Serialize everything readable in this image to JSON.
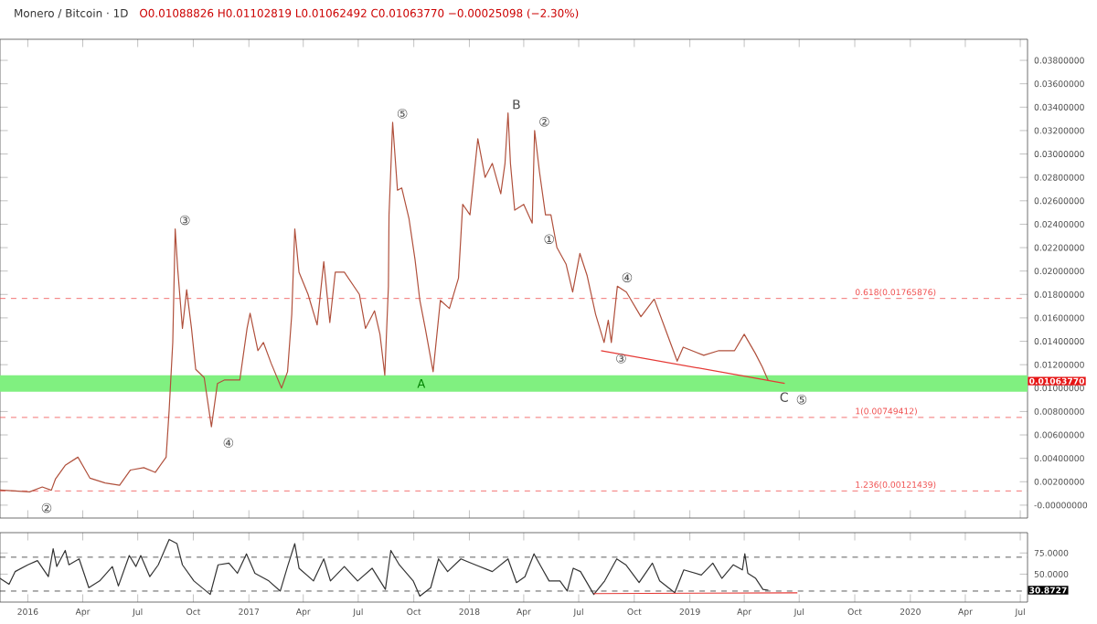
{
  "chart_data": [
    {
      "type": "line",
      "title": "Monero / Bitcoin · 1D",
      "subtitle": "O0.01088826 H0.01102819 L0.01062492 C0.01063770 −0.00025098 (−2.30%)",
      "xlim": [
        "2015-11-16",
        "2020-07-13"
      ],
      "ylim": [
        -0.0011,
        0.0398
      ],
      "xticks": [
        {
          "value": "2016-01-01",
          "label": null
        },
        {
          "value": "2016-04-01",
          "label": null
        },
        {
          "value": "2016-07-01",
          "label": null
        },
        {
          "value": "2016-10-01",
          "label": null
        },
        {
          "value": "2017-01-01",
          "label": null
        },
        {
          "value": "2017-04-01",
          "label": null
        },
        {
          "value": "2017-07-01",
          "label": null
        },
        {
          "value": "2017-10-01",
          "label": null
        },
        {
          "value": "2018-01-01",
          "label": null
        },
        {
          "value": "2018-04-01",
          "label": null
        },
        {
          "value": "2018-07-01",
          "label": null
        },
        {
          "value": "2018-10-01",
          "label": null
        },
        {
          "value": "2019-01-01",
          "label": null
        },
        {
          "value": "2019-04-01",
          "label": null
        },
        {
          "value": "2019-07-01",
          "label": null
        },
        {
          "value": "2019-10-01",
          "label": null
        },
        {
          "value": "2020-01-01",
          "label": null
        },
        {
          "value": "2020-04-01",
          "label": null
        },
        {
          "value": "2020-07-01",
          "label": null
        }
      ],
      "yticks": [
        {
          "value": 0,
          "label": "-0.00000000"
        },
        {
          "value": 0.002,
          "label": "0.00200000"
        },
        {
          "value": 0.004,
          "label": "0.00400000"
        },
        {
          "value": 0.006,
          "label": "0.00600000"
        },
        {
          "value": 0.008,
          "label": "0.00800000"
        },
        {
          "value": 0.01,
          "label": "0.01000000"
        },
        {
          "value": 0.012,
          "label": "0.01200000"
        },
        {
          "value": 0.014,
          "label": "0.01400000"
        },
        {
          "value": 0.016,
          "label": "0.01600000"
        },
        {
          "value": 0.018,
          "label": "0.01800000"
        },
        {
          "value": 0.02,
          "label": "0.02000000"
        },
        {
          "value": 0.022,
          "label": "0.02200000"
        },
        {
          "value": 0.024,
          "label": "0.02400000"
        },
        {
          "value": 0.026,
          "label": "0.02600000"
        },
        {
          "value": 0.028,
          "label": "0.02800000"
        },
        {
          "value": 0.03,
          "label": "0.03000000"
        },
        {
          "value": 0.032,
          "label": "0.03200000"
        },
        {
          "value": 0.034,
          "label": "0.03400000"
        },
        {
          "value": 0.036,
          "label": "0.03600000"
        },
        {
          "value": 0.038,
          "label": "0.03800000"
        }
      ],
      "tick_labels": "y",
      "series": [
        {
          "color": "#b0503c",
          "x": [
            "2015-11-16",
            "2016-01-04",
            "2016-01-25",
            "2016-02-09",
            "2016-02-16",
            "2016-03-03",
            "2016-03-24",
            "2016-04-13",
            "2016-05-08",
            "2016-06-01",
            "2016-06-19",
            "2016-07-11",
            "2016-07-30",
            "2016-08-17",
            "2016-08-22",
            "2016-08-28",
            "2016-09-01",
            "2016-09-05",
            "2016-09-13",
            "2016-09-20",
            "2016-09-28",
            "2016-10-05",
            "2016-10-19",
            "2016-10-31",
            "2016-11-10",
            "2016-11-22",
            "2016-12-17",
            "2016-12-29",
            "2017-01-03",
            "2017-01-16",
            "2017-01-25",
            "2017-02-07",
            "2017-02-24",
            "2017-03-06",
            "2017-03-13",
            "2017-03-18",
            "2017-03-25",
            "2017-04-09",
            "2017-04-24",
            "2017-05-05",
            "2017-05-15",
            "2017-05-24",
            "2017-06-08",
            "2017-07-03",
            "2017-07-13",
            "2017-07-28",
            "2017-08-06",
            "2017-08-14",
            "2017-08-20",
            "2017-08-21",
            "2017-08-27",
            "2017-09-04",
            "2017-09-11",
            "2017-09-23",
            "2017-10-03",
            "2017-10-11",
            "2017-10-20",
            "2017-11-02",
            "2017-11-14",
            "2017-11-29",
            "2017-12-14",
            "2017-12-21",
            "2018-01-02",
            "2018-01-15",
            "2018-01-27",
            "2018-02-08",
            "2018-02-22",
            "2018-03-01",
            "2018-03-06",
            "2018-03-10",
            "2018-03-17",
            "2018-04-01",
            "2018-04-15",
            "2018-04-19",
            "2018-04-27",
            "2018-05-07",
            "2018-05-16",
            "2018-05-26",
            "2018-06-10",
            "2018-06-21",
            "2018-07-03",
            "2018-07-15",
            "2018-07-29",
            "2018-08-12",
            "2018-08-19",
            "2018-08-24",
            "2018-09-03",
            "2018-09-18",
            "2018-10-12",
            "2018-11-03",
            "2018-11-21",
            "2018-12-11",
            "2018-12-21",
            "2019-01-24",
            "2019-02-18",
            "2019-03-16",
            "2019-04-01",
            "2019-04-19",
            "2019-05-01",
            "2019-05-11"
          ],
          "values": [
            0.00129,
            0.00113,
            0.00155,
            0.00127,
            0.00225,
            0.0034,
            0.0041,
            0.0023,
            0.0019,
            0.0017,
            0.003,
            0.0032,
            0.0028,
            0.0041,
            0.0081,
            0.0139,
            0.0236,
            0.0203,
            0.0151,
            0.0184,
            0.0151,
            0.0116,
            0.0109,
            0.0067,
            0.0104,
            0.0107,
            0.0107,
            0.0151,
            0.0164,
            0.0132,
            0.0139,
            0.0121,
            0.01,
            0.0114,
            0.0163,
            0.0236,
            0.0199,
            0.018,
            0.0154,
            0.0208,
            0.0156,
            0.0199,
            0.0199,
            0.018,
            0.0151,
            0.0166,
            0.0146,
            0.0111,
            0.0187,
            0.0248,
            0.0327,
            0.0269,
            0.0271,
            0.0245,
            0.021,
            0.0175,
            0.0151,
            0.0114,
            0.0175,
            0.0168,
            0.0194,
            0.0257,
            0.0248,
            0.0313,
            0.028,
            0.0292,
            0.0266,
            0.0292,
            0.0335,
            0.0292,
            0.0252,
            0.0257,
            0.0241,
            0.032,
            0.0285,
            0.0248,
            0.0248,
            0.022,
            0.0206,
            0.0182,
            0.0215,
            0.0196,
            0.0163,
            0.0139,
            0.0158,
            0.0139,
            0.0187,
            0.0182,
            0.0161,
            0.0176,
            0.0151,
            0.0123,
            0.0135,
            0.0128,
            0.0132,
            0.0132,
            0.0146,
            0.013,
            0.0118,
            0.0106
          ]
        },
        {
          "color": "#e53935",
          "x": [
            "2018-08-07",
            "2019-06-07"
          ],
          "values": [
            0.0132,
            0.0104
          ]
        }
      ],
      "ref_lines": [
        {
          "axis": "y",
          "value": 0.01765876,
          "label": "0.618(0.01765876)",
          "color": "#f05050",
          "line_style": "dashed"
        },
        {
          "axis": "y",
          "value": 0.00749412,
          "label": "1(0.00749412)",
          "color": "#f05050",
          "line_style": "dashed"
        },
        {
          "axis": "y",
          "value": 0.00121439,
          "label": "1.236(0.00121439)",
          "color": "#f05050",
          "line_style": "dashed"
        }
      ],
      "bands": [
        {
          "axis": "y",
          "from": 0.0097,
          "to": 0.0111,
          "label": "A",
          "color": "#80f080"
        }
      ],
      "annotations": [
        {
          "text": "②",
          "x": "2016-01-04",
          "y": 0.00113
        },
        {
          "text": "③",
          "x": "2016-09-01",
          "y": 0.0236
        },
        {
          "text": "④",
          "x": "2016-10-31",
          "y": 0.0067
        },
        {
          "text": "⑤",
          "x": "2017-08-27",
          "y": 0.0327
        },
        {
          "text": "B",
          "x": "2018-03-06",
          "y": 0.0335
        },
        {
          "text": "①",
          "x": "2018-04-15",
          "y": 0.0241
        },
        {
          "text": "②",
          "x": "2018-04-19",
          "y": 0.032
        },
        {
          "text": "③",
          "x": "2018-08-12",
          "y": 0.0139
        },
        {
          "text": "④",
          "x": "2018-09-03",
          "y": 0.0187
        },
        {
          "text": "C",
          "x": "2019-05-11",
          "y": 0.0106
        },
        {
          "text": "⑤",
          "x": "2019-06-07",
          "y": 0.0104
        },
        "0.01063770"
      ]
    },
    {
      "type": "line",
      "xlim": [
        "2015-11-16",
        "2020-07-13"
      ],
      "ylim": [
        17,
        99
      ],
      "xticks": [
        {
          "value": "2016-01-01",
          "label": "2016"
        },
        {
          "value": "2016-04-01",
          "label": "Apr"
        },
        {
          "value": "2016-07-01",
          "label": "Jul"
        },
        {
          "value": "2016-10-01",
          "label": "Oct"
        },
        {
          "value": "2017-01-01",
          "label": "2017"
        },
        {
          "value": "2017-04-01",
          "label": "Apr"
        },
        {
          "value": "2017-07-01",
          "label": "Jul"
        },
        {
          "value": "2017-10-01",
          "label": "Oct"
        },
        {
          "value": "2018-01-01",
          "label": "2018"
        },
        {
          "value": "2018-04-01",
          "label": "Apr"
        },
        {
          "value": "2018-07-01",
          "label": "Jul"
        },
        {
          "value": "2018-10-01",
          "label": "Oct"
        },
        {
          "value": "2019-01-01",
          "label": "2019"
        },
        {
          "value": "2019-04-01",
          "label": "Apr"
        },
        {
          "value": "2019-07-01",
          "label": "Jul"
        },
        {
          "value": "2019-10-01",
          "label": "Oct"
        },
        {
          "value": "2020-01-01",
          "label": "2020"
        },
        {
          "value": "2020-04-01",
          "label": "Apr"
        },
        {
          "value": "2020-07-01",
          "label": "Jul"
        }
      ],
      "yticks": [
        {
          "value": 50,
          "label": "50.0000"
        },
        {
          "value": 75,
          "label": "75.0000"
        }
      ],
      "series": [
        {
          "color": "#333333",
          "x": [
            "2015-11-16",
            "2015-12-01",
            "2015-12-11",
            "2016-01-01",
            "2016-01-17",
            "2016-02-04",
            "2016-02-12",
            "2016-02-18",
            "2016-03-03",
            "2016-03-09",
            "2016-03-26",
            "2016-04-11",
            "2016-04-29",
            "2016-05-20",
            "2016-05-30",
            "2016-06-17",
            "2016-06-28",
            "2016-07-06",
            "2016-07-21",
            "2016-08-04",
            "2016-08-22",
            "2016-09-04",
            "2016-09-13",
            "2016-10-02",
            "2016-10-29",
            "2016-11-11",
            "2016-11-29",
            "2016-12-13",
            "2016-12-28",
            "2017-01-11",
            "2017-02-03",
            "2017-02-22",
            "2017-03-06",
            "2017-03-18",
            "2017-03-25",
            "2017-04-18",
            "2017-05-05",
            "2017-05-16",
            "2017-06-08",
            "2017-06-30",
            "2017-07-24",
            "2017-08-15",
            "2017-08-24",
            "2017-09-07",
            "2017-09-30",
            "2017-10-11",
            "2017-10-29",
            "2017-11-11",
            "2017-11-26",
            "2017-12-18",
            "2018-01-11",
            "2018-02-08",
            "2018-03-06",
            "2018-03-20",
            "2018-04-03",
            "2018-04-18",
            "2018-04-28",
            "2018-05-13",
            "2018-05-31",
            "2018-06-12",
            "2018-06-22",
            "2018-07-04",
            "2018-07-26",
            "2018-08-13",
            "2018-09-02",
            "2018-09-17",
            "2018-10-09",
            "2018-10-31",
            "2018-11-12",
            "2018-12-07",
            "2018-12-22",
            "2019-01-20",
            "2019-02-08",
            "2019-02-23",
            "2019-03-14",
            "2019-03-29",
            "2019-04-02",
            "2019-04-07",
            "2019-04-20",
            "2019-05-02",
            "2019-05-11"
          ],
          "values": [
            45,
            38,
            53,
            61,
            66,
            47,
            80,
            59,
            78,
            61,
            68,
            34,
            42,
            59,
            36,
            72,
            59,
            72,
            47,
            61,
            91,
            86,
            61,
            42,
            26,
            61,
            63,
            51,
            74,
            51,
            42,
            30,
            59,
            86,
            57,
            42,
            68,
            42,
            59,
            42,
            57,
            32,
            78,
            61,
            42,
            24,
            34,
            68,
            53,
            68,
            61,
            53,
            68,
            40,
            47,
            74,
            61,
            42,
            42,
            30,
            57,
            53,
            26,
            42,
            68,
            61,
            40,
            63,
            42,
            28,
            55,
            49,
            63,
            45,
            61,
            55,
            74,
            51,
            45,
            32,
            31
          ]
        },
        {
          "color": "#e53935",
          "x": [
            "2018-07-26",
            "2019-06-28"
          ],
          "values": [
            27,
            28
          ]
        }
      ],
      "ref_lines": [
        {
          "axis": "y",
          "value": 70,
          "color": "#333333",
          "line_style": "dashed"
        },
        {
          "axis": "y",
          "value": 30,
          "color": "#333333",
          "line_style": "dashed"
        }
      ],
      "annotations": [
        "30.8727"
      ]
    }
  ]
}
